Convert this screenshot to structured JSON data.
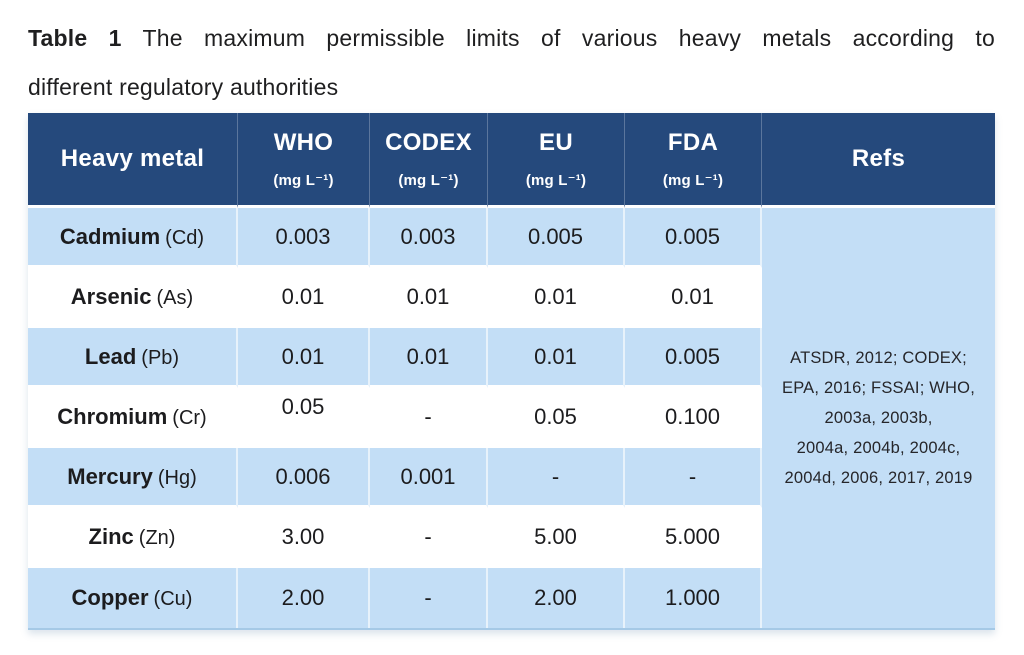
{
  "title": {
    "label": "Table 1",
    "line1": "The maximum permissible limits of various heavy metals according to",
    "line2": "different regulatory authorities"
  },
  "table": {
    "columns": [
      {
        "label": "Heavy metal",
        "unit": ""
      },
      {
        "label": "WHO",
        "unit": "(mg L⁻¹)"
      },
      {
        "label": "CODEX",
        "unit": "(mg L⁻¹)"
      },
      {
        "label": "EU",
        "unit": "(mg L⁻¹)"
      },
      {
        "label": "FDA",
        "unit": "(mg L⁻¹)"
      },
      {
        "label": "Refs",
        "unit": ""
      }
    ],
    "rows": [
      {
        "metal": "Cadmium",
        "symbol": "(Cd)",
        "who": "0.003",
        "codex": "0.003",
        "eu": "0.005",
        "fda": "0.005"
      },
      {
        "metal": "Arsenic",
        "symbol": "(As)",
        "who": "0.01",
        "codex": "0.01",
        "eu": "0.01",
        "fda": "0.01"
      },
      {
        "metal": "Lead",
        "symbol": "(Pb)",
        "who": "0.01",
        "codex": "0.01",
        "eu": "0.01",
        "fda": "0.005"
      },
      {
        "metal": "Chromium",
        "symbol": "(Cr)",
        "who": "0.05",
        "codex": "-",
        "eu": "0.05",
        "fda": "0.100"
      },
      {
        "metal": "Mercury",
        "symbol": "(Hg)",
        "who": "0.006",
        "codex": "0.001",
        "eu": "-",
        "fda": "-"
      },
      {
        "metal": "Zinc",
        "symbol": "(Zn)",
        "who": "3.00",
        "codex": "-",
        "eu": "5.00",
        "fda": "5.000"
      },
      {
        "metal": "Copper",
        "symbol": "(Cu)",
        "who": "2.00",
        "codex": "-",
        "eu": "2.00",
        "fda": "1.000"
      }
    ],
    "refs_lines": [
      "ATSDR, 2012; CODEX;",
      "EPA, 2016; FSSAI; WHO,",
      "2003a, 2003b,",
      "2004a, 2004b, 2004c,",
      "2004d, 2006, 2017, 2019"
    ]
  },
  "colors": {
    "header_bg": "#25497c",
    "row_alt_bg": "#c3def6",
    "row_bg": "#ffffff",
    "header_text": "#ffffff",
    "body_text": "#1c1c1e"
  }
}
